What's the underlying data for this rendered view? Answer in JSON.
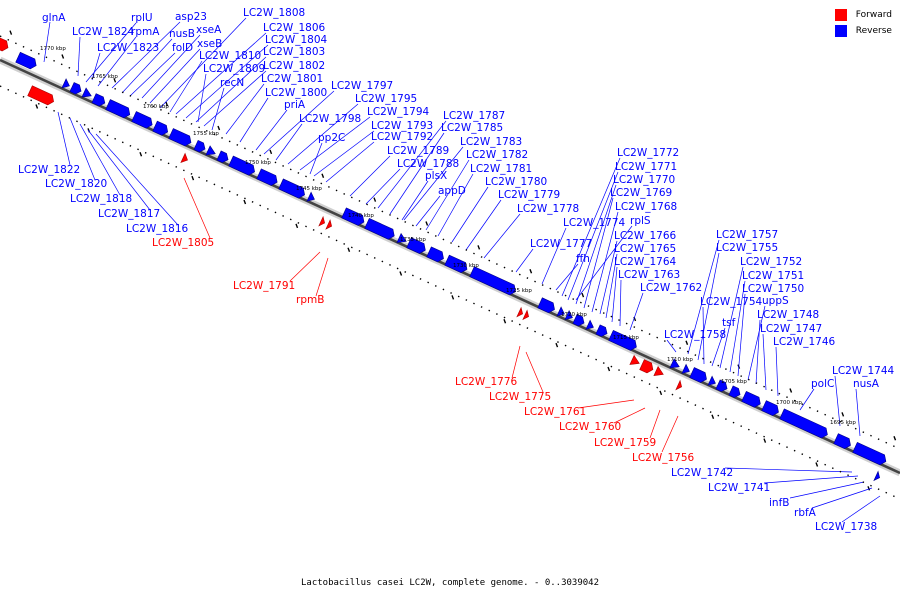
{
  "caption": "Lactobacillus casei LC2W, complete genome. - 0..3039042",
  "legend": [
    {
      "label": "Forward",
      "color": "#ff0000"
    },
    {
      "label": "Reverse",
      "color": "#0000ff"
    }
  ],
  "colors": {
    "forward": "#ff0000",
    "reverse": "#0000ff",
    "backbone": "#555555"
  },
  "ticks": [
    "1770 kbp",
    "1765 kbp",
    "1760 kbp",
    "1755 kbp",
    "1750 kbp",
    "1745 kbp",
    "1740 kbp",
    "1735 kbp",
    "1730 kbp",
    "1725 kbp",
    "1720 kbp",
    "1715 kbp",
    "1710 kbp",
    "1705 kbp",
    "1700 kbp",
    "1695 kbp"
  ],
  "reverse_labels": [
    "glnA",
    "LC2W_1824",
    "rplU",
    "rpmA",
    "asp23",
    "nusB",
    "folD",
    "LC2W_1823",
    "xseA",
    "xseB",
    "LC2W_1808",
    "LC2W_1806",
    "LC2W_1804",
    "LC2W_1803",
    "LC2W_1802",
    "LC2W_1810",
    "LC2W_1809",
    "recN",
    "LC2W_1801",
    "LC2W_1800",
    "priA",
    "LC2W_1797",
    "LC2W_1795",
    "LC2W_1798",
    "LC2W_1794",
    "LC2W_1793",
    "pp2C",
    "LC2W_1792",
    "LC2W_1789",
    "LC2W_1788",
    "plsX",
    "appD",
    "LC2W_1787",
    "LC2W_1785",
    "LC2W_1783",
    "LC2W_1782",
    "LC2W_1781",
    "LC2W_1780",
    "LC2W_1779",
    "LC2W_1778",
    "LC2W_1777",
    "ffh",
    "LC2W_1774",
    "rplS",
    "LC2W_1772",
    "LC2W_1771",
    "LC2W_1770",
    "LC2W_1769",
    "LC2W_1768",
    "LC2W_1766",
    "LC2W_1765",
    "LC2W_1764",
    "LC2W_1763",
    "LC2W_1762",
    "LC2W_1758",
    "LC2W_1757",
    "LC2W_1755",
    "tsf",
    "LC2W_1754",
    "LC2W_1752",
    "LC2W_1751",
    "LC2W_1750",
    "uppS",
    "LC2W_1748",
    "LC2W_1747",
    "LC2W_1746",
    "polC",
    "LC2W_1744",
    "nusA",
    "LC2W_1822",
    "LC2W_1820",
    "LC2W_1818",
    "LC2W_1817",
    "LC2W_1816",
    "LC2W_1742",
    "LC2W_1741",
    "infB",
    "rbfA",
    "LC2W_1738"
  ],
  "forward_labels": [
    "LC2W_1805",
    "LC2W_1791",
    "rpmB",
    "LC2W_1776",
    "LC2W_1775",
    "LC2W_1761",
    "LC2W_1760",
    "LC2W_1759",
    "LC2W_1756"
  ]
}
